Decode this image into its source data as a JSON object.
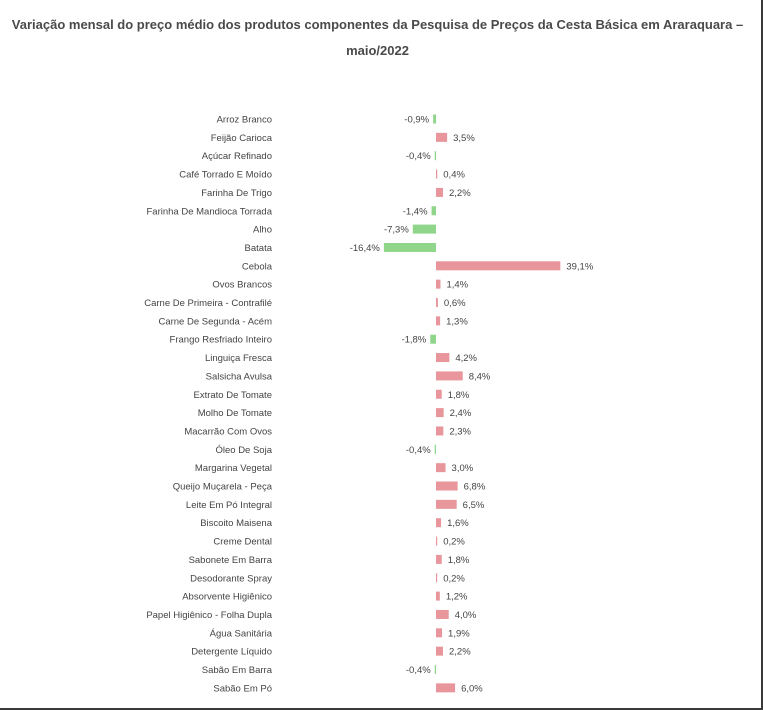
{
  "chart_data": {
    "type": "bar",
    "orientation": "horizontal",
    "title": "Variação mensal do preço médio dos produtos componentes da Pesquisa de Preços da Cesta Básica em Araraquara – maio/2022",
    "categories": [
      "Arroz Branco",
      "Feijão Carioca",
      "Açúcar Refinado",
      "Café Torrado E Moído",
      "Farinha De Trigo",
      "Farinha De Mandioca Torrada",
      "Alho",
      "Batata",
      "Cebola",
      "Ovos Brancos",
      "Carne De Primeira - Contrafilé",
      "Carne De Segunda - Acém",
      "Frango Resfriado Inteiro",
      "Linguiça Fresca",
      "Salsicha Avulsa",
      "Extrato De Tomate",
      "Molho De Tomate",
      "Macarrão Com Ovos",
      "Óleo De Soja",
      "Margarina Vegetal",
      "Queijo Muçarela - Peça",
      "Leite Em Pó Integral",
      "Biscoito Maisena",
      "Creme Dental",
      "Sabonete Em Barra",
      "Desodorante Spray",
      "Absorvente Higiênico",
      "Papel Higiênico - Folha Dupla",
      "Água Sanitária",
      "Detergente Líquido",
      "Sabão Em Barra",
      "Sabão Em Pó"
    ],
    "values": [
      -0.9,
      3.5,
      -0.4,
      0.4,
      2.2,
      -1.4,
      -7.3,
      -16.4,
      39.1,
      1.4,
      0.6,
      1.3,
      -1.8,
      4.2,
      8.4,
      1.8,
      2.4,
      2.3,
      -0.4,
      3.0,
      6.8,
      6.5,
      1.6,
      0.2,
      1.8,
      0.2,
      1.2,
      4.0,
      1.9,
      2.2,
      -0.4,
      6.0
    ],
    "labels": [
      "-0,9%",
      "3,5%",
      "-0,4%",
      "0,4%",
      "2,2%",
      "-1,4%",
      "-7,3%",
      "-16,4%",
      "39,1%",
      "1,4%",
      "0,6%",
      "1,3%",
      "-1,8%",
      "4,2%",
      "8,4%",
      "1,8%",
      "2,4%",
      "2,3%",
      "-0,4%",
      "3,0%",
      "6,8%",
      "6,5%",
      "1,6%",
      "0,2%",
      "1,8%",
      "0,2%",
      "1,2%",
      "4,0%",
      "1,9%",
      "2,2%",
      "-0,4%",
      "6,0%"
    ],
    "colors": {
      "positive": "#e8969b",
      "negative": "#8fd68a",
      "text": "#444444"
    }
  }
}
